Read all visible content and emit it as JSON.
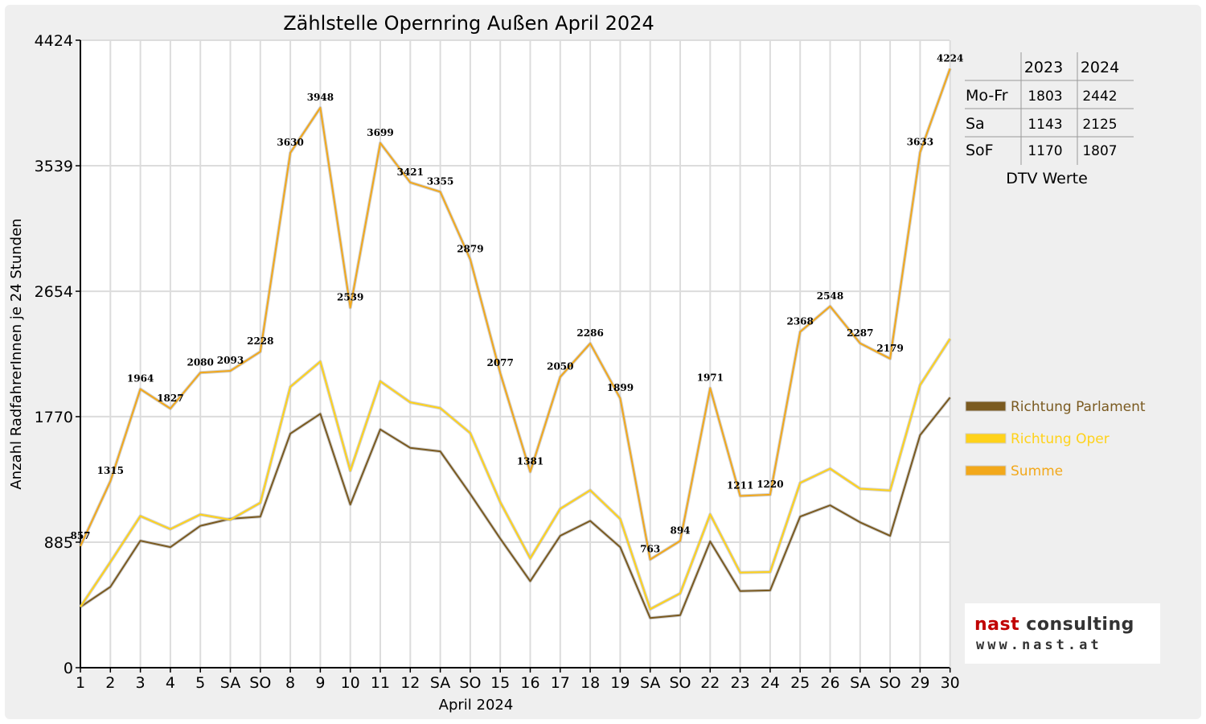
{
  "chart_data": {
    "type": "line",
    "title": "Zählstelle Opernring Außen April 2024",
    "xlabel": "April 2024",
    "ylabel": "Anzahl RadfahrerInnen je 24 Stunden",
    "ylim": [
      0,
      4424
    ],
    "yticks": [
      0,
      885,
      1770,
      2654,
      3539,
      4424
    ],
    "categories": [
      "1",
      "2",
      "3",
      "4",
      "5",
      "SA",
      "SO",
      "8",
      "9",
      "10",
      "11",
      "12",
      "SA",
      "SO",
      "15",
      "16",
      "17",
      "18",
      "19",
      "SA",
      "SO",
      "22",
      "23",
      "24",
      "25",
      "26",
      "SA",
      "SO",
      "29",
      "30"
    ],
    "red_categories": [
      0,
      6,
      13,
      20,
      27
    ],
    "grid": true,
    "legend_position": "right",
    "series": [
      {
        "name": "Richtung Parlament",
        "color": "#7a5a20",
        "values": [
          428,
          570,
          895,
          850,
          1000,
          1050,
          1065,
          1650,
          1790,
          1150,
          1680,
          1550,
          1525,
          1225,
          910,
          610,
          930,
          1035,
          850,
          350,
          370,
          890,
          540,
          545,
          1065,
          1145,
          1025,
          930,
          1640,
          1905
        ]
      },
      {
        "name": "Richtung Oper",
        "color": "#ffd21a",
        "values": [
          429,
          745,
          1069,
          977,
          1080,
          1043,
          1163,
          1980,
          2158,
          1389,
          2019,
          1871,
          1830,
          1654,
          1167,
          771,
          1120,
          1251,
          1049,
          413,
          524,
          1081,
          671,
          675,
          1303,
          1403,
          1262,
          1249,
          1993,
          2319
        ]
      },
      {
        "name": "Summe",
        "color": "#f2a81b",
        "values": [
          857,
          1315,
          1964,
          1827,
          2080,
          2093,
          2228,
          3630,
          3948,
          2539,
          3699,
          3421,
          3355,
          2879,
          2077,
          1381,
          2050,
          2286,
          1899,
          763,
          894,
          1971,
          1211,
          1220,
          2368,
          2548,
          2287,
          2179,
          3633,
          4224
        ],
        "labeled": true
      }
    ]
  },
  "dtv_table": {
    "headers": [
      "",
      "2023",
      "2024"
    ],
    "rows": [
      {
        "label": "Mo-Fr",
        "v2023": "1803",
        "v2024": "2442"
      },
      {
        "label": "Sa",
        "v2023": "1143",
        "v2024": "2125"
      },
      {
        "label": "SoF",
        "v2023": "1170",
        "v2024": "1807"
      }
    ],
    "caption": "DTV Werte"
  },
  "logo": {
    "line1_a": "nast",
    "line1_b": " consulting",
    "line2": "www.nast.at"
  }
}
